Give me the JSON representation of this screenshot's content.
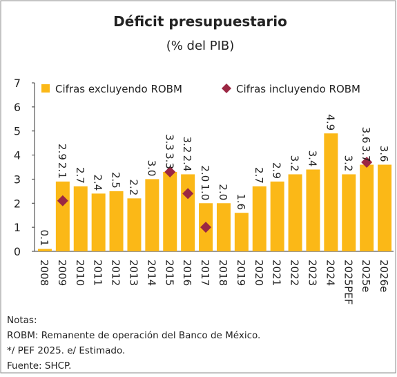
{
  "chart_data": {
    "type": "bar",
    "title": "Déficit presupuestario",
    "subtitle": "(% del PIB)",
    "categories": [
      "2008",
      "2009",
      "2010",
      "2011",
      "2012",
      "2013",
      "2014",
      "2015",
      "2016",
      "2017",
      "2018",
      "2019",
      "2020",
      "2021",
      "2022",
      "2023",
      "2024",
      "2025PEF",
      "2025e",
      "2026e"
    ],
    "series": [
      {
        "name": "Cifras excluyendo ROBM",
        "color": "#fbb817",
        "kind": "bar",
        "values": [
          0.1,
          2.9,
          2.7,
          2.4,
          2.5,
          2.2,
          3.0,
          3.3,
          3.2,
          2.0,
          2.0,
          1.6,
          2.7,
          2.9,
          3.2,
          3.4,
          4.9,
          3.2,
          3.6,
          3.6
        ],
        "value_labels": [
          "0.1",
          "2.9",
          "2.7",
          "2.4",
          "2.5",
          "2.2",
          "3.0",
          "3.3",
          "3.2",
          "2.0",
          "2.0",
          "1.6",
          "2.7",
          "2.9",
          "3.2",
          "3.4",
          "4.9",
          "3.2",
          "3.6",
          "3.6"
        ]
      },
      {
        "name": "Cifras incluyendo ROBM",
        "color": "#9b2743",
        "kind": "diamond",
        "values": [
          null,
          2.1,
          null,
          null,
          null,
          null,
          null,
          3.3,
          2.4,
          1.0,
          null,
          null,
          null,
          null,
          null,
          null,
          null,
          null,
          3.7,
          null
        ],
        "value_labels": [
          null,
          "2.1",
          null,
          null,
          null,
          null,
          null,
          "3.3",
          "2.4",
          "1.0",
          null,
          null,
          null,
          null,
          null,
          null,
          null,
          null,
          "3.7",
          null
        ]
      }
    ],
    "ylim": [
      0,
      7
    ],
    "yticks": [
      0,
      1,
      2,
      3,
      4,
      5,
      6,
      7
    ],
    "notes": [
      "Notas:",
      "ROBM: Remanente de operación del Banco de México.",
      "*/ PEF 2025. e/ Estimado.",
      "Fuente: SHCP."
    ]
  }
}
